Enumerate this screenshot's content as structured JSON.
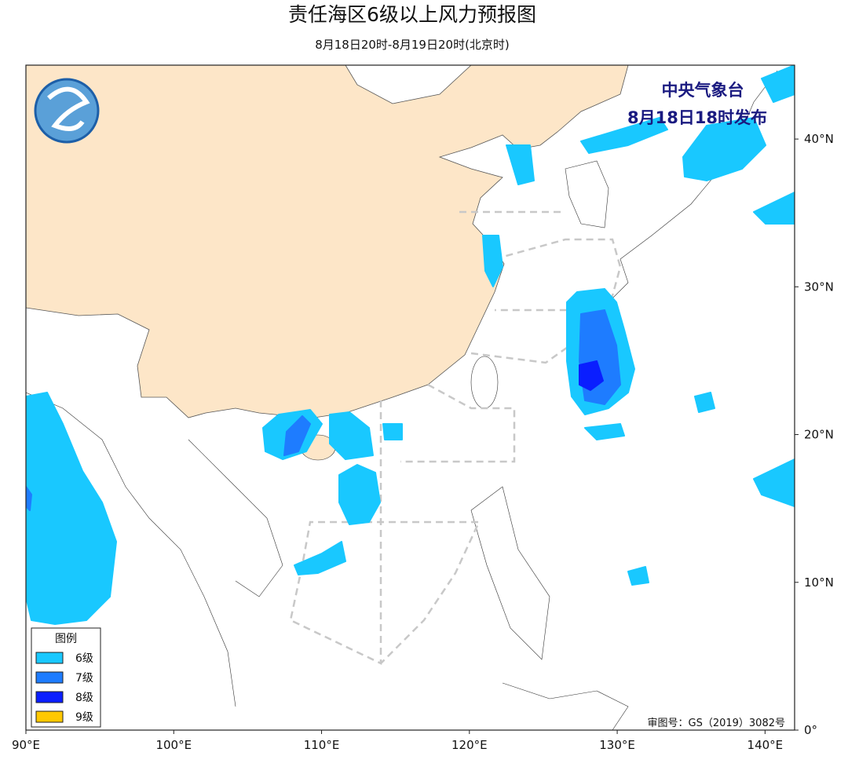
{
  "header": {
    "title": "责任海区6级以上风力预报图",
    "subtitle": "8月18日20时-8月19日20时(北京时)"
  },
  "issuer": {
    "name": "中央气象台",
    "time": "8月18日18时发布"
  },
  "legend": {
    "title": "图例",
    "items": [
      {
        "label": "6级",
        "color": "#19c8ff"
      },
      {
        "label": "7级",
        "color": "#1e7cff"
      },
      {
        "label": "8级",
        "color": "#0a1eff"
      },
      {
        "label": "9级",
        "color": "#ffc800"
      }
    ]
  },
  "map": {
    "xlim": [
      90,
      142
    ],
    "ylim": [
      0,
      45
    ],
    "xticks": [
      {
        "value": 90,
        "label": "90°E"
      },
      {
        "value": 100,
        "label": "100°E"
      },
      {
        "value": 110,
        "label": "110°E"
      },
      {
        "value": 120,
        "label": "120°E"
      },
      {
        "value": 130,
        "label": "130°E"
      },
      {
        "value": 140,
        "label": "140°E"
      }
    ],
    "yticks": [
      {
        "value": 0,
        "label": "0°"
      },
      {
        "value": 10,
        "label": "10°N"
      },
      {
        "value": 20,
        "label": "20°N"
      },
      {
        "value": 30,
        "label": "30°N"
      },
      {
        "value": 40,
        "label": "40°N"
      }
    ]
  },
  "footer": {
    "review_number": "审图号：GS（2019）3082号"
  }
}
